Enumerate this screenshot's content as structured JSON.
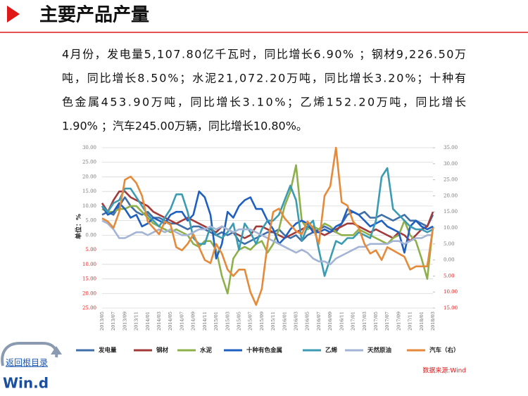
{
  "header": {
    "title": "主要产品产量"
  },
  "paragraph": [
    "4月份，发电量5,107.80亿千瓦时，同比增长6.90% ；钢材9,226.50万",
    "吨，同比增长8.50%；水泥21,072.20万吨，同比增长3.20%；十种有",
    "色金属453.90万吨，同比增长3.10%；乙烯152.20万吨，同比增长",
    "1.90% ；汽车245.00万辆，同比增长10.80%。"
  ],
  "chart_data": {
    "type": "line",
    "y_label": "单位：%",
    "source": "数据来源:Wind",
    "categories": [
      "2013/05",
      null,
      "2013/07",
      null,
      "2013/09",
      null,
      "2013/11",
      null,
      "2014/01",
      null,
      "2014/03",
      null,
      "2014/05",
      null,
      "2014/07",
      null,
      "2014/09",
      null,
      "2014/11",
      null,
      "2015/01",
      null,
      "2015/03",
      null,
      "2015/05",
      null,
      "2015/07",
      null,
      "2015/09",
      null,
      "2015/11",
      null,
      "2016/01",
      null,
      "2016/03",
      null,
      "2016/05",
      null,
      "2016/07",
      null,
      "2016/09",
      null,
      "2016/11",
      null,
      "2017/01",
      null,
      "2017/03",
      null,
      "2017/05",
      null,
      "2017/07",
      null,
      "2017/09",
      null,
      "2017/11",
      null,
      "2018/01",
      null,
      "2018/03"
    ],
    "ylim": [
      -25,
      30
    ],
    "yticks": [
      {
        "value": 30,
        "label": "30.00"
      },
      {
        "value": 25,
        "label": "25.00"
      },
      {
        "value": 20,
        "label": "20.00"
      },
      {
        "value": 15,
        "label": "15.00"
      },
      {
        "value": 10,
        "label": "10.00"
      },
      {
        "value": 5,
        "label": "5.00"
      },
      {
        "value": 0,
        "label": "0.00"
      },
      {
        "value": -5,
        "label": "5.00"
      },
      {
        "value": -10,
        "label": "10.00"
      },
      {
        "value": -15,
        "label": "15.00"
      },
      {
        "value": -20,
        "label": "20.00"
      },
      {
        "value": -25,
        "label": "25.00"
      }
    ],
    "y2lim": [
      -15,
      35
    ],
    "y2ticks": [
      {
        "value": 35,
        "label": "35.00"
      },
      {
        "value": 30,
        "label": "30.00"
      },
      {
        "value": 25,
        "label": "25.00"
      },
      {
        "value": 20,
        "label": "20.00"
      },
      {
        "value": 15,
        "label": "15.00"
      },
      {
        "value": 10,
        "label": "10.00"
      },
      {
        "value": 5,
        "label": "5.00"
      },
      {
        "value": 0,
        "label": "0.00"
      },
      {
        "value": -5,
        "label": "5.00"
      },
      {
        "value": -10,
        "label": "10.00"
      },
      {
        "value": -15,
        "label": "15.00"
      }
    ],
    "grid": true,
    "series": [
      {
        "name": "发电量",
        "color": "#3f6fa8",
        "values": [
          7,
          8,
          7,
          10,
          13,
          10,
          8,
          7,
          8,
          6,
          6,
          5,
          4,
          4,
          3,
          2,
          3,
          3,
          2,
          1,
          0,
          1,
          0,
          1,
          -2,
          -3,
          -2,
          -1,
          0,
          1,
          1,
          2,
          0,
          -1,
          0,
          -2,
          0,
          1,
          2,
          3,
          2,
          1,
          4,
          7,
          8,
          7,
          8,
          6,
          6,
          7,
          6,
          5,
          6,
          7,
          5,
          5,
          4,
          3,
          7
        ]
      },
      {
        "name": "钢材",
        "color": "#a33a3a",
        "values": [
          11,
          8,
          12,
          15,
          15,
          13,
          12,
          11,
          10,
          8,
          7,
          6,
          5,
          4,
          5,
          6,
          5,
          4,
          3,
          2,
          1,
          3,
          2,
          1,
          0,
          -1,
          0,
          3,
          3,
          2,
          1,
          0,
          -1,
          0,
          1,
          2,
          3,
          2,
          1,
          0,
          1,
          2,
          3,
          4,
          4,
          3,
          2,
          1,
          2,
          1,
          0,
          -1,
          1,
          0,
          -2,
          0,
          2,
          3,
          8
        ]
      },
      {
        "name": "水泥",
        "color": "#8db04a",
        "values": [
          9,
          8,
          8,
          9,
          9,
          10,
          10,
          8,
          6,
          4,
          3,
          2,
          1,
          2,
          1,
          0,
          -3,
          -4,
          -2,
          -2,
          -5,
          -14,
          -20,
          -8,
          -5,
          -4,
          -5,
          -3,
          -2,
          -6,
          -3,
          2,
          10,
          15,
          24,
          5,
          2,
          3,
          2,
          4,
          3,
          1,
          0,
          0,
          0,
          2,
          1,
          0,
          -1,
          -2,
          -3,
          -1,
          0,
          5,
          0,
          -2,
          -8,
          -15,
          3
        ]
      },
      {
        "name": "十种有色金属",
        "color": "#1f5fc0",
        "values": [
          10,
          7,
          8,
          11,
          9,
          6,
          7,
          3,
          4,
          6,
          5,
          4,
          7,
          8,
          8,
          5,
          7,
          15,
          13,
          7,
          -8,
          -3,
          8,
          6,
          10,
          12,
          13,
          9,
          9,
          5,
          2,
          -3,
          -1,
          2,
          4,
          5,
          4,
          1,
          1,
          2,
          1,
          3,
          4,
          9,
          8,
          7,
          5,
          3,
          4,
          5,
          3,
          2,
          1,
          -6,
          3,
          5,
          3,
          2,
          3
        ]
      },
      {
        "name": "乙烯",
        "color": "#3a9bb2",
        "values": [
          10,
          8,
          11,
          12,
          16,
          16,
          13,
          10,
          7,
          5,
          3,
          6,
          9,
          14,
          14,
          8,
          -1,
          -3,
          -3,
          3,
          0,
          -1,
          1,
          4,
          -5,
          4,
          1,
          -3,
          2,
          5,
          5,
          7,
          12,
          17,
          12,
          -2,
          3,
          5,
          -5,
          -14,
          -8,
          -2,
          -3,
          -1,
          -1,
          1,
          0,
          -1,
          5,
          20,
          23,
          9,
          7,
          5,
          3,
          2,
          2,
          1,
          2
        ]
      },
      {
        "name": "天然原油",
        "color": "#a3b4d4",
        "values": [
          5,
          4,
          2,
          -1,
          -1,
          0,
          1,
          1,
          0,
          1,
          2,
          1,
          2,
          1,
          0,
          0,
          1,
          2,
          2,
          3,
          2,
          3,
          2,
          1,
          2,
          2,
          2,
          1,
          0,
          -1,
          -2,
          -3,
          -4,
          -5,
          -6,
          -5,
          -6,
          -8,
          -9,
          -9,
          -10,
          -8,
          -7,
          -6,
          -5,
          -4,
          -4,
          -3,
          -3,
          -3,
          -3,
          -2,
          -2,
          -3,
          -2,
          -1,
          -1,
          0,
          0
        ]
      },
      {
        "name": "汽车（右）",
        "color": "#e58a3a",
        "axis": "y2",
        "values": [
          13,
          12,
          10,
          15,
          25,
          26,
          24,
          20,
          12,
          10,
          8,
          12,
          11,
          4,
          3,
          5,
          8,
          4,
          0,
          -1,
          5,
          2,
          -3,
          -5,
          -3,
          -3,
          -10,
          -14,
          -9,
          5,
          15,
          16,
          13,
          11,
          9,
          8,
          12,
          10,
          5,
          20,
          23,
          35,
          18,
          17,
          12,
          10,
          5,
          2,
          3,
          0,
          4,
          3,
          2,
          1,
          -3,
          -2,
          -2,
          -2,
          10
        ]
      }
    ]
  },
  "logo": {
    "nav": "返回根目录",
    "brand": "Win.d"
  }
}
